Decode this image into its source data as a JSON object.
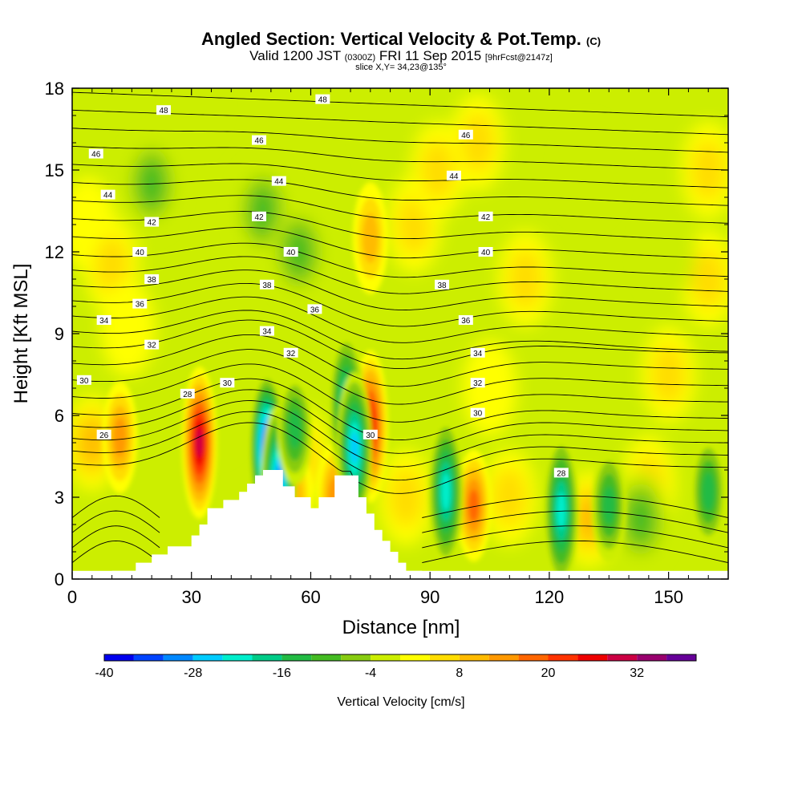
{
  "header": {
    "title": "Angled Section: Vertical Velocity & Pot.Temp.",
    "title_suffix": "(C)",
    "valid_prefix": "Valid 1200 JST",
    "valid_utc": "(0300Z)",
    "valid_date": "FRI 11 Sep 2015",
    "forecast": "[9hrFcst@2147z]",
    "slice": "slice X,Y= 34,23@135°"
  },
  "chart_data": {
    "type": "heatmap",
    "xlabel": "Distance [nm]",
    "ylabel": "Height [Kft MSL]",
    "xlim": [
      0,
      165
    ],
    "ylim": [
      0,
      18
    ],
    "xticks": [
      0,
      30,
      60,
      90,
      120,
      150
    ],
    "yticks": [
      0,
      3,
      6,
      9,
      12,
      15,
      18
    ],
    "grid": false,
    "colorbar": {
      "label": "Vertical Velocity [cm/s]",
      "min": -40,
      "max": 40,
      "step": 4,
      "tick_values": [
        -40,
        -28,
        -16,
        -4,
        8,
        20,
        32
      ],
      "tick_labels": [
        "-40",
        "-28",
        "-16",
        "-4",
        "8",
        "20",
        "32"
      ],
      "colors": [
        "#0000ee",
        "#0044ff",
        "#0088ff",
        "#00ccff",
        "#00eecc",
        "#00cc88",
        "#22bb44",
        "#44bb22",
        "#88cc11",
        "#ccee00",
        "#ffff00",
        "#ffdd00",
        "#ffbb00",
        "#ff9900",
        "#ff6600",
        "#ff3300",
        "#ee0000",
        "#cc0044",
        "#99006e",
        "#660099"
      ]
    },
    "terrain": {
      "x": [
        0,
        10,
        16,
        20,
        24,
        30,
        32,
        34,
        38,
        42,
        44,
        46,
        48,
        50,
        53,
        56,
        60,
        62,
        66,
        68,
        70,
        72,
        74,
        76,
        78,
        80,
        82,
        84,
        88,
        165
      ],
      "height": [
        0,
        0.3,
        0.6,
        0.9,
        1.2,
        1.6,
        2.0,
        2.6,
        2.9,
        3.2,
        3.5,
        3.8,
        4.0,
        4.0,
        3.4,
        3.0,
        2.6,
        3.0,
        3.8,
        3.8,
        3.8,
        3.0,
        2.4,
        1.8,
        1.4,
        1.0,
        0.6,
        0.3,
        0,
        0
      ]
    },
    "updrafts": [
      {
        "x": 5,
        "z": 5,
        "value": 10
      },
      {
        "x": 12,
        "z": 5.2,
        "value": 14
      },
      {
        "x": 32,
        "z": 5,
        "value": 32
      },
      {
        "x": 56,
        "z": 3,
        "value": 12
      },
      {
        "x": 58,
        "z": 4.5,
        "value": 8
      },
      {
        "x": 75,
        "z": 5.6,
        "value": 26
      },
      {
        "x": 66,
        "z": 3,
        "value": 14
      },
      {
        "x": 84,
        "z": 3,
        "value": 8
      },
      {
        "x": 101,
        "z": 2.7,
        "value": 18
      },
      {
        "x": 110,
        "z": 3,
        "value": 8
      },
      {
        "x": 130,
        "z": 2.2,
        "value": 10
      },
      {
        "x": 145,
        "z": 3.5,
        "value": 6
      },
      {
        "x": 75,
        "z": 12.5,
        "value": 12
      },
      {
        "x": 4,
        "z": 13,
        "value": 5
      },
      {
        "x": 10,
        "z": 11.5,
        "value": 6
      },
      {
        "x": 86,
        "z": 13,
        "value": 6
      },
      {
        "x": 92,
        "z": 15,
        "value": 6
      },
      {
        "x": 102,
        "z": 16,
        "value": 6
      },
      {
        "x": 114,
        "z": 11,
        "value": 6
      },
      {
        "x": 150,
        "z": 7.5,
        "value": 6
      },
      {
        "x": 160,
        "z": 15,
        "value": 8
      },
      {
        "x": 160,
        "z": 11,
        "value": 6
      },
      {
        "x": 14,
        "z": 9.2,
        "value": 5
      },
      {
        "x": 105,
        "z": 7,
        "value": 5
      }
    ],
    "downdrafts": [
      {
        "x": 49,
        "z": 4.8,
        "value": -38
      },
      {
        "x": 52,
        "z": 3.6,
        "value": -30
      },
      {
        "x": 56,
        "z": 5.5,
        "value": -14
      },
      {
        "x": 69,
        "z": 6.3,
        "value": -24
      },
      {
        "x": 71,
        "z": 4.8,
        "value": -26
      },
      {
        "x": 94,
        "z": 3.2,
        "value": -24
      },
      {
        "x": 123,
        "z": 2.5,
        "value": -22
      },
      {
        "x": 135,
        "z": 2.7,
        "value": -14
      },
      {
        "x": 143,
        "z": 2.2,
        "value": -10
      },
      {
        "x": 160,
        "z": 3.2,
        "value": -14
      },
      {
        "x": 36,
        "z": 6.3,
        "value": -4
      },
      {
        "x": 48,
        "z": 13.5,
        "value": -10
      },
      {
        "x": 20,
        "z": 14.5,
        "value": -10
      },
      {
        "x": 57,
        "z": 12,
        "value": -10
      },
      {
        "x": 150,
        "z": 12,
        "value": -4
      },
      {
        "x": 80,
        "z": 16.5,
        "value": -4
      },
      {
        "x": 130,
        "z": 15,
        "value": -4
      },
      {
        "x": 30,
        "z": 17.5,
        "value": -4
      }
    ],
    "isentropes": {
      "levels": [
        26,
        27,
        28,
        29,
        30,
        31,
        32,
        33,
        34,
        35,
        36,
        37,
        38,
        39,
        40,
        41,
        42,
        43,
        44,
        45,
        46,
        47,
        48,
        49
      ],
      "labels": [
        {
          "text": "48",
          "x": 23,
          "z": 17.2
        },
        {
          "text": "48",
          "x": 63,
          "z": 17.6
        },
        {
          "text": "46",
          "x": 6,
          "z": 15.6
        },
        {
          "text": "46",
          "x": 47,
          "z": 16.1
        },
        {
          "text": "46",
          "x": 99,
          "z": 16.3
        },
        {
          "text": "44",
          "x": 9,
          "z": 14.1
        },
        {
          "text": "44",
          "x": 52,
          "z": 14.6
        },
        {
          "text": "44",
          "x": 96,
          "z": 14.8
        },
        {
          "text": "42",
          "x": 20,
          "z": 13.1
        },
        {
          "text": "42",
          "x": 47,
          "z": 13.3
        },
        {
          "text": "42",
          "x": 104,
          "z": 13.3
        },
        {
          "text": "40",
          "x": 17,
          "z": 12.0
        },
        {
          "text": "40",
          "x": 55,
          "z": 12.0
        },
        {
          "text": "40",
          "x": 104,
          "z": 12.0
        },
        {
          "text": "38",
          "x": 20,
          "z": 11.0
        },
        {
          "text": "38",
          "x": 49,
          "z": 10.8
        },
        {
          "text": "38",
          "x": 93,
          "z": 10.8
        },
        {
          "text": "36",
          "x": 17,
          "z": 10.1
        },
        {
          "text": "36",
          "x": 61,
          "z": 9.9
        },
        {
          "text": "36",
          "x": 99,
          "z": 9.5
        },
        {
          "text": "34",
          "x": 8,
          "z": 9.5
        },
        {
          "text": "34",
          "x": 49,
          "z": 9.1
        },
        {
          "text": "34",
          "x": 102,
          "z": 8.3
        },
        {
          "text": "32",
          "x": 20,
          "z": 8.6
        },
        {
          "text": "32",
          "x": 55,
          "z": 8.3
        },
        {
          "text": "32",
          "x": 102,
          "z": 7.2
        },
        {
          "text": "30",
          "x": 3,
          "z": 7.3
        },
        {
          "text": "30",
          "x": 39,
          "z": 7.2
        },
        {
          "text": "30",
          "x": 75,
          "z": 5.3
        },
        {
          "text": "30",
          "x": 102,
          "z": 6.1
        },
        {
          "text": "28",
          "x": 29,
          "z": 6.8
        },
        {
          "text": "28",
          "x": 123,
          "z": 3.9
        },
        {
          "text": "26",
          "x": 8,
          "z": 5.3
        }
      ]
    }
  }
}
